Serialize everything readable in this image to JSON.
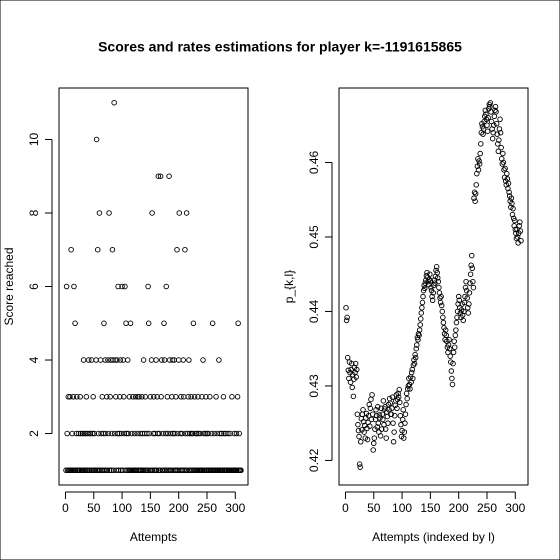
{
  "title": "Scores and rates estimations for player k=-1191615865",
  "chart_data": [
    {
      "type": "scatter",
      "xlabel": "Attempts",
      "ylabel": "Score reached",
      "xlim": [
        -11.4,
        322.4
      ],
      "xticks": [
        0,
        50,
        100,
        150,
        200,
        250,
        300
      ],
      "ylim": [
        0.6,
        11.4
      ],
      "yticks": [
        2,
        4,
        6,
        8,
        10
      ],
      "values": [
        1,
        6,
        2,
        1,
        3,
        1,
        1,
        3,
        1,
        7,
        1,
        2,
        1,
        3,
        6,
        1,
        5,
        1,
        2,
        3,
        1,
        1,
        2,
        1,
        1,
        3,
        2,
        1,
        1,
        2,
        1,
        4,
        2,
        1,
        1,
        2,
        3,
        1,
        2,
        1,
        4,
        1,
        2,
        2,
        1,
        4,
        1,
        2,
        3,
        1,
        2,
        1,
        1,
        4,
        10,
        1,
        7,
        2,
        1,
        8,
        1,
        4,
        2,
        1,
        3,
        1,
        2,
        5,
        1,
        4,
        2,
        1,
        3,
        1,
        4,
        2,
        8,
        1,
        3,
        4,
        1,
        2,
        7,
        4,
        1,
        11,
        2,
        4,
        3,
        1,
        4,
        2,
        6,
        1,
        2,
        3,
        4,
        1,
        2,
        6,
        1,
        4,
        3,
        2,
        6,
        1,
        5,
        2,
        1,
        4,
        2,
        1,
        3,
        1,
        5,
        1,
        2,
        1,
        3,
        1,
        1,
        2,
        1,
        3,
        1,
        1,
        2,
        3,
        1,
        3,
        1,
        2,
        1,
        1,
        3,
        2,
        1,
        4,
        1,
        2,
        3,
        1,
        1,
        2,
        1,
        6,
        5,
        2,
        1,
        3,
        1,
        4,
        8,
        1,
        2,
        3,
        1,
        2,
        1,
        4,
        1,
        3,
        2,
        9,
        1,
        2,
        1,
        9,
        3,
        4,
        1,
        2,
        1,
        5,
        4,
        1,
        2,
        6,
        1,
        3,
        2,
        1,
        9,
        4,
        1,
        2,
        1,
        3,
        4,
        2,
        1,
        4,
        2,
        1,
        3,
        1,
        7,
        2,
        1,
        4,
        8,
        1,
        2,
        3,
        1,
        2,
        1,
        4,
        3,
        1,
        7,
        2,
        1,
        8,
        1,
        2,
        3,
        4,
        1,
        2,
        1,
        3,
        2,
        1,
        2,
        5,
        1,
        3,
        1,
        2,
        1,
        2,
        1,
        3,
        2,
        1,
        1,
        2,
        1,
        1,
        3,
        1,
        4,
        2,
        1,
        1,
        2,
        3,
        1,
        2,
        1,
        2,
        1,
        1,
        3,
        1,
        1,
        2,
        1,
        5,
        1,
        1,
        2,
        1,
        1,
        3,
        1,
        2,
        1,
        1,
        4,
        1,
        2,
        1,
        1,
        2,
        1,
        1,
        3,
        2,
        1,
        1,
        2,
        1,
        1,
        1,
        2,
        1,
        1,
        1,
        2,
        1,
        1,
        3,
        1,
        1,
        1,
        2,
        1,
        1,
        1,
        2,
        1,
        3,
        5,
        1,
        2,
        1,
        1,
        1
      ]
    },
    {
      "type": "scatter",
      "xlabel": "Attempts (indexed by l)",
      "ylabel": "p_{k,l}",
      "xlim": [
        -11.4,
        322.4
      ],
      "xticks": [
        0,
        50,
        100,
        150,
        200,
        250,
        300
      ],
      "ylim": [
        0.4167,
        0.47
      ],
      "yticks": [
        0.42,
        0.43,
        0.44,
        0.45,
        0.46
      ],
      "values": [
        0.4405,
        0.4388,
        0.4392,
        0.4338,
        0.4321,
        0.431,
        0.4332,
        0.4318,
        0.4305,
        0.4322,
        0.433,
        0.4298,
        0.4315,
        0.4286,
        0.4309,
        0.4325,
        0.4318,
        0.433,
        0.4312,
        0.4322,
        0.4262,
        0.4248,
        0.424,
        0.4232,
        0.4195,
        0.4191,
        0.4225,
        0.4256,
        0.4241,
        0.4262,
        0.4268,
        0.4252,
        0.4238,
        0.4247,
        0.423,
        0.4257,
        0.4263,
        0.4243,
        0.4228,
        0.4251,
        0.426,
        0.4275,
        0.4246,
        0.427,
        0.4282,
        0.4255,
        0.4288,
        0.4262,
        0.4214,
        0.4223,
        0.423,
        0.4242,
        0.4255,
        0.4268,
        0.426,
        0.4245,
        0.4272,
        0.425,
        0.4238,
        0.4261,
        0.4257,
        0.4233,
        0.427,
        0.4242,
        0.4262,
        0.4255,
        0.428,
        0.4248,
        0.4269,
        0.4272,
        0.4242,
        0.423,
        0.4265,
        0.4259,
        0.425,
        0.4275,
        0.4268,
        0.4283,
        0.4277,
        0.4262,
        0.4262,
        0.427,
        0.4285,
        0.425,
        0.4225,
        0.4238,
        0.426,
        0.4274,
        0.428,
        0.4288,
        0.427,
        0.4282,
        0.429,
        0.4285,
        0.4295,
        0.4278,
        0.426,
        0.4248,
        0.4232,
        0.424,
        0.4255,
        0.4268,
        0.423,
        0.4238,
        0.425,
        0.4262,
        0.4275,
        0.429,
        0.4283,
        0.4296,
        0.43,
        0.431,
        0.4302,
        0.4296,
        0.4312,
        0.4305,
        0.4318,
        0.4322,
        0.431,
        0.4328,
        0.4335,
        0.433,
        0.4342,
        0.4338,
        0.435,
        0.4355,
        0.4365,
        0.4362,
        0.437,
        0.4368,
        0.4375,
        0.4382,
        0.439,
        0.4398,
        0.4405,
        0.4412,
        0.442,
        0.4428,
        0.4435,
        0.4431,
        0.4438,
        0.4442,
        0.4448,
        0.4452,
        0.4446,
        0.444,
        0.4436,
        0.4443,
        0.445,
        0.4441,
        0.4432,
        0.4428,
        0.442,
        0.4415,
        0.4425,
        0.4435,
        0.4442,
        0.4438,
        0.4447,
        0.4455,
        0.446,
        0.4452,
        0.4445,
        0.444,
        0.4432,
        0.4425,
        0.4418,
        0.4412,
        0.442,
        0.4408,
        0.44,
        0.4392,
        0.4385,
        0.4378,
        0.437,
        0.4362,
        0.4375,
        0.4368,
        0.436,
        0.4352,
        0.4345,
        0.4355,
        0.4362,
        0.435,
        0.434,
        0.4332,
        0.432,
        0.431,
        0.4302,
        0.433,
        0.4345,
        0.436,
        0.4352,
        0.4368,
        0.4375,
        0.4385,
        0.4392,
        0.44,
        0.441,
        0.442,
        0.4415,
        0.4405,
        0.4398,
        0.4392,
        0.4402,
        0.441,
        0.4395,
        0.4388,
        0.44,
        0.4412,
        0.442,
        0.4432,
        0.444,
        0.4428,
        0.4418,
        0.4405,
        0.4398,
        0.441,
        0.4425,
        0.4438,
        0.445,
        0.4462,
        0.4475,
        0.4458,
        0.444,
        0.4432,
        0.4552,
        0.456,
        0.4548,
        0.4558,
        0.457,
        0.4585,
        0.4595,
        0.4605,
        0.459,
        0.4602,
        0.4598,
        0.4612,
        0.4625,
        0.464,
        0.4652,
        0.4648,
        0.4638,
        0.4645,
        0.4655,
        0.4662,
        0.467,
        0.4665,
        0.4658,
        0.465,
        0.4642,
        0.466,
        0.4672,
        0.4678,
        0.4675,
        0.468,
        0.4668,
        0.4655,
        0.4645,
        0.4632,
        0.464,
        0.465,
        0.4662,
        0.467,
        0.4675,
        0.4668,
        0.4652,
        0.4638,
        0.4625,
        0.4615,
        0.463,
        0.4645,
        0.4658,
        0.464,
        0.462,
        0.4605,
        0.4598,
        0.4612,
        0.46,
        0.459,
        0.458,
        0.4592,
        0.4575,
        0.457,
        0.4585,
        0.4578,
        0.4565,
        0.4572,
        0.456,
        0.4555,
        0.4548,
        0.454,
        0.4552,
        0.4545,
        0.453,
        0.4538,
        0.4525,
        0.4515,
        0.4522,
        0.451,
        0.4505,
        0.4498,
        0.451,
        0.45,
        0.4492,
        0.4505,
        0.4515,
        0.452,
        0.4508,
        0.4495
      ]
    }
  ]
}
